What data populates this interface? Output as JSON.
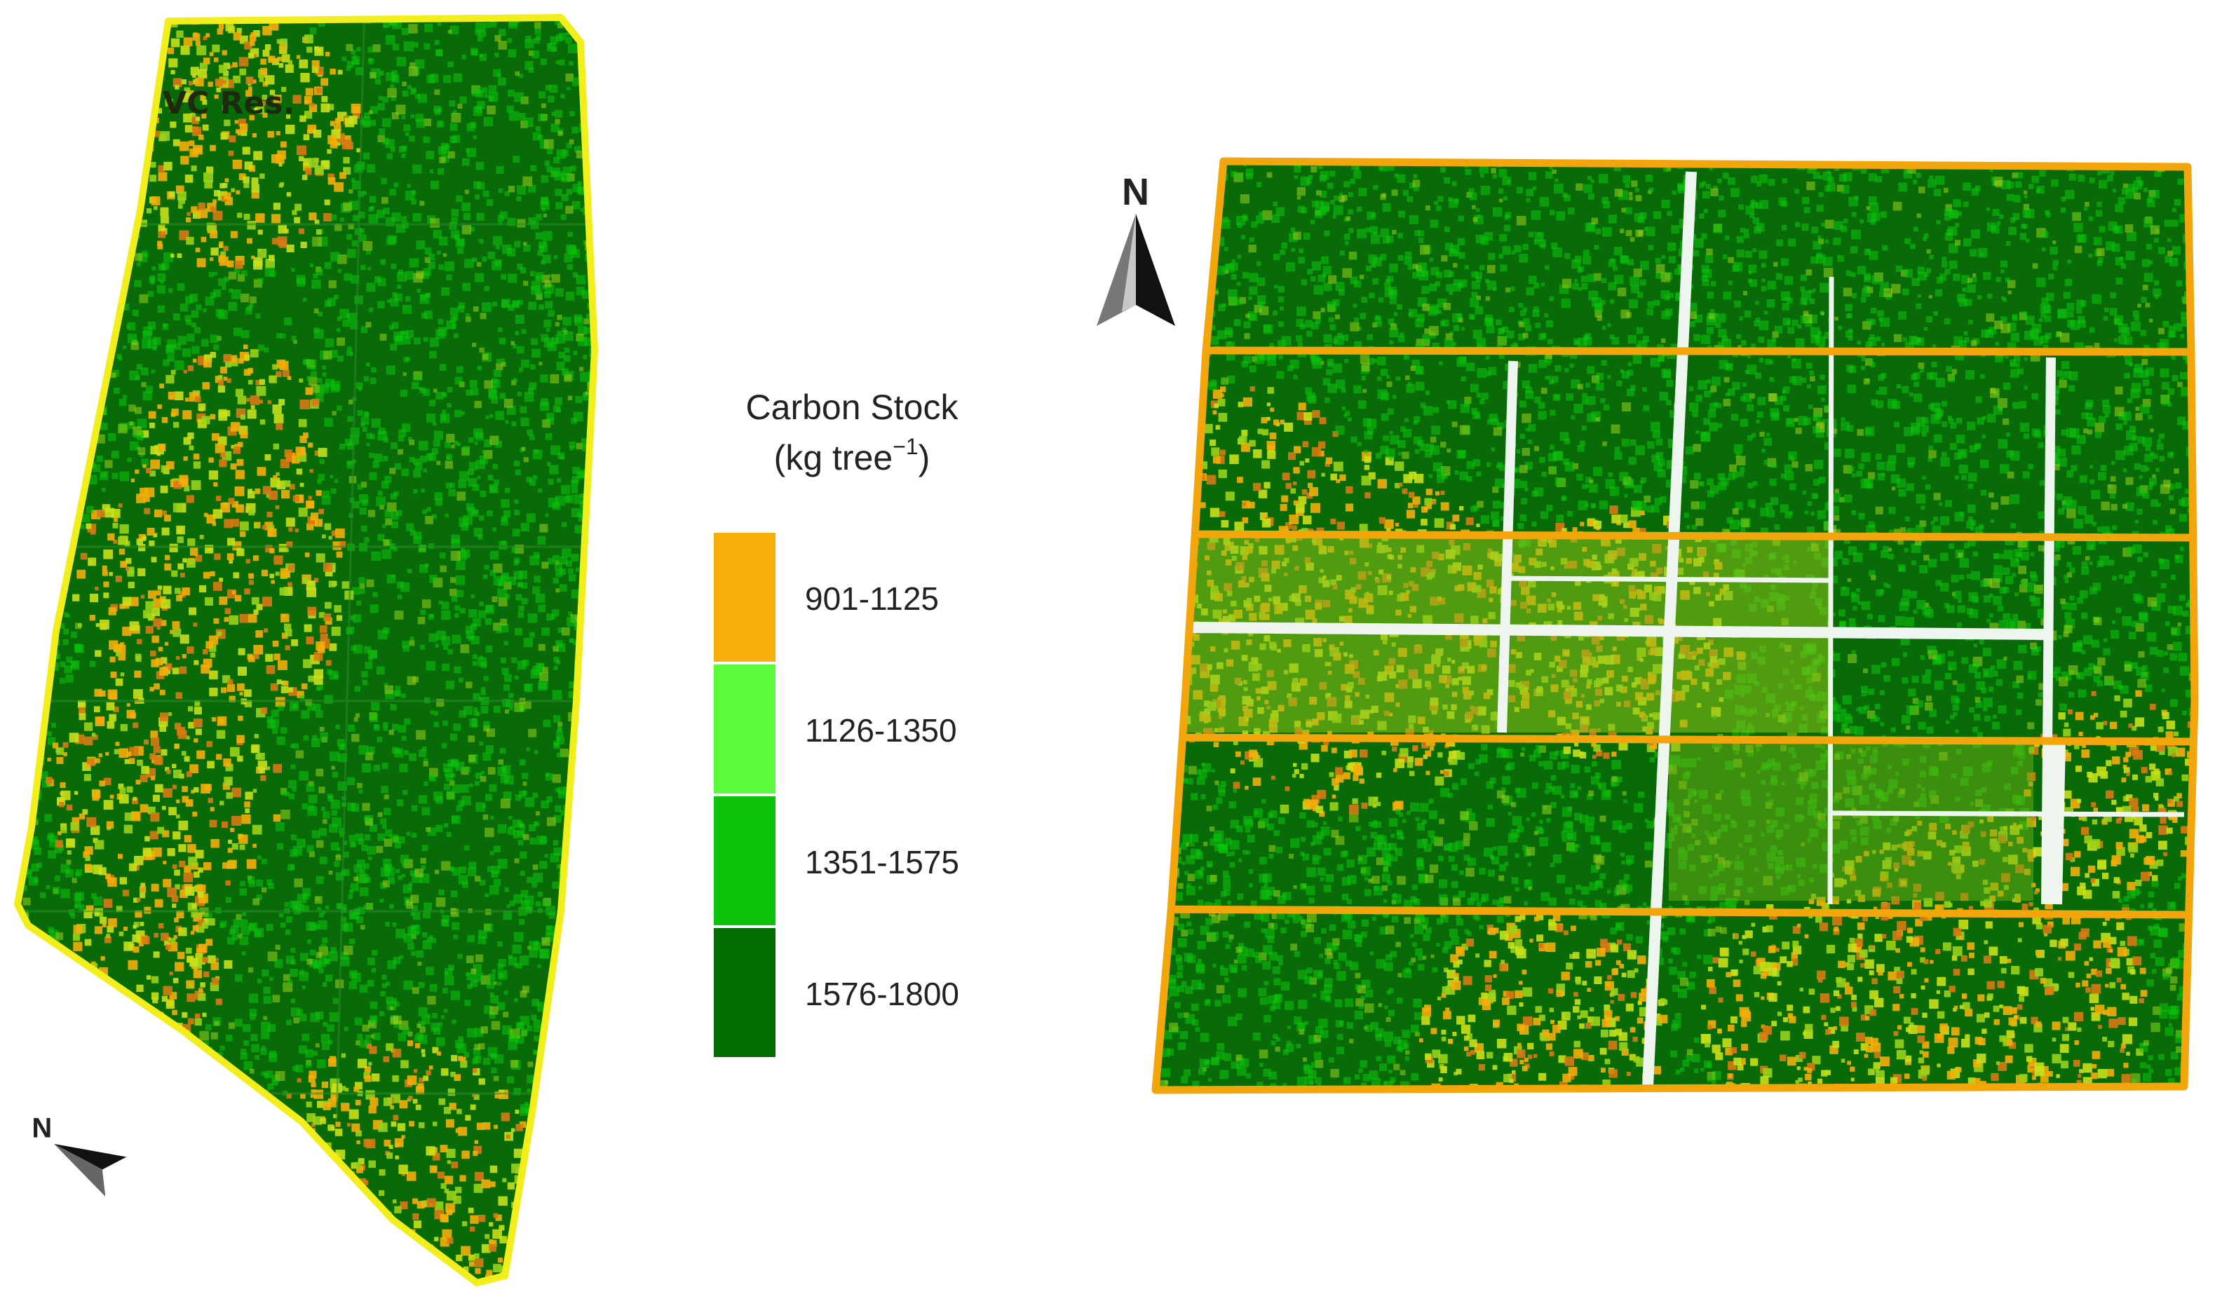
{
  "left_map": {
    "reserve_label": "VC Res.",
    "north_letter": "N",
    "outline_color": "#f2ee1c"
  },
  "right_map": {
    "north_letter": "N",
    "outline_color": "#f2a60c",
    "road_color": "#f0f5f0"
  },
  "legend": {
    "title_line1": "Carbon Stock",
    "title_line2_main": "(kg tree",
    "title_line2_sup": "−1",
    "title_line2_end": ")",
    "classes": [
      {
        "label": "901-1125",
        "color": "#f5ae0a"
      },
      {
        "label": "1126-1350",
        "color": "#5afa3c"
      },
      {
        "label": "1351-1575",
        "color": "#0cc40c"
      },
      {
        "label": "1576-1800",
        "color": "#036c03"
      }
    ]
  }
}
